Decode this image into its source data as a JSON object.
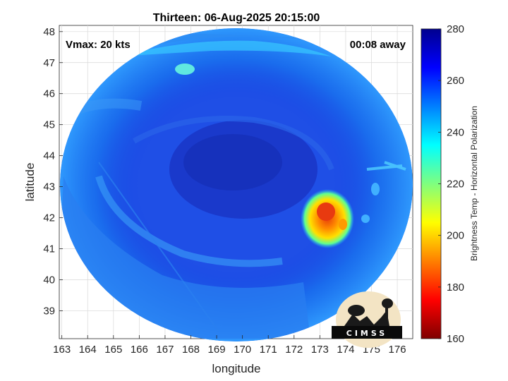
{
  "chart_data": {
    "type": "heatmap",
    "title": "Thirteen: 06-Aug-2025 20:15:00",
    "xlabel": "longitude",
    "ylabel": "latitude",
    "xlim": [
      162.9,
      176.6
    ],
    "ylim": [
      38.1,
      48.2
    ],
    "xticks": [
      "163",
      "164",
      "165",
      "166",
      "167",
      "168",
      "169",
      "170",
      "171",
      "172",
      "173",
      "174",
      "175",
      "176"
    ],
    "yticks": [
      "39",
      "40",
      "41",
      "42",
      "43",
      "44",
      "45",
      "46",
      "47",
      "48"
    ],
    "grid": true,
    "annotations": {
      "vmax": "Vmax: 20 kts",
      "away": "00:08 away"
    },
    "colorbar": {
      "label": "Brightness Temp - Horizontal Polarization",
      "range": [
        160,
        280
      ],
      "ticks": [
        "280",
        "260",
        "240",
        "220",
        "200",
        "180",
        "160"
      ],
      "colors": [
        "#7f0000",
        "#ff0000",
        "#ff7f00",
        "#ffff00",
        "#7fff7f",
        "#00ffff",
        "#007fff",
        "#0000ff",
        "#00008f"
      ]
    },
    "swath": {
      "center_lon": 169.9,
      "center_lat": 43.15
    },
    "features": [
      {
        "name": "cold convective core",
        "lon": 173.1,
        "lat": 42.15,
        "value": 195
      },
      {
        "name": "cold cloud band",
        "lon": 168.0,
        "lat": 46.8,
        "value": 238
      },
      {
        "name": "vortex center",
        "lon": 170.5,
        "lat": 43.5,
        "value": 268
      }
    ]
  },
  "logo": {
    "text": "CIMSS"
  }
}
